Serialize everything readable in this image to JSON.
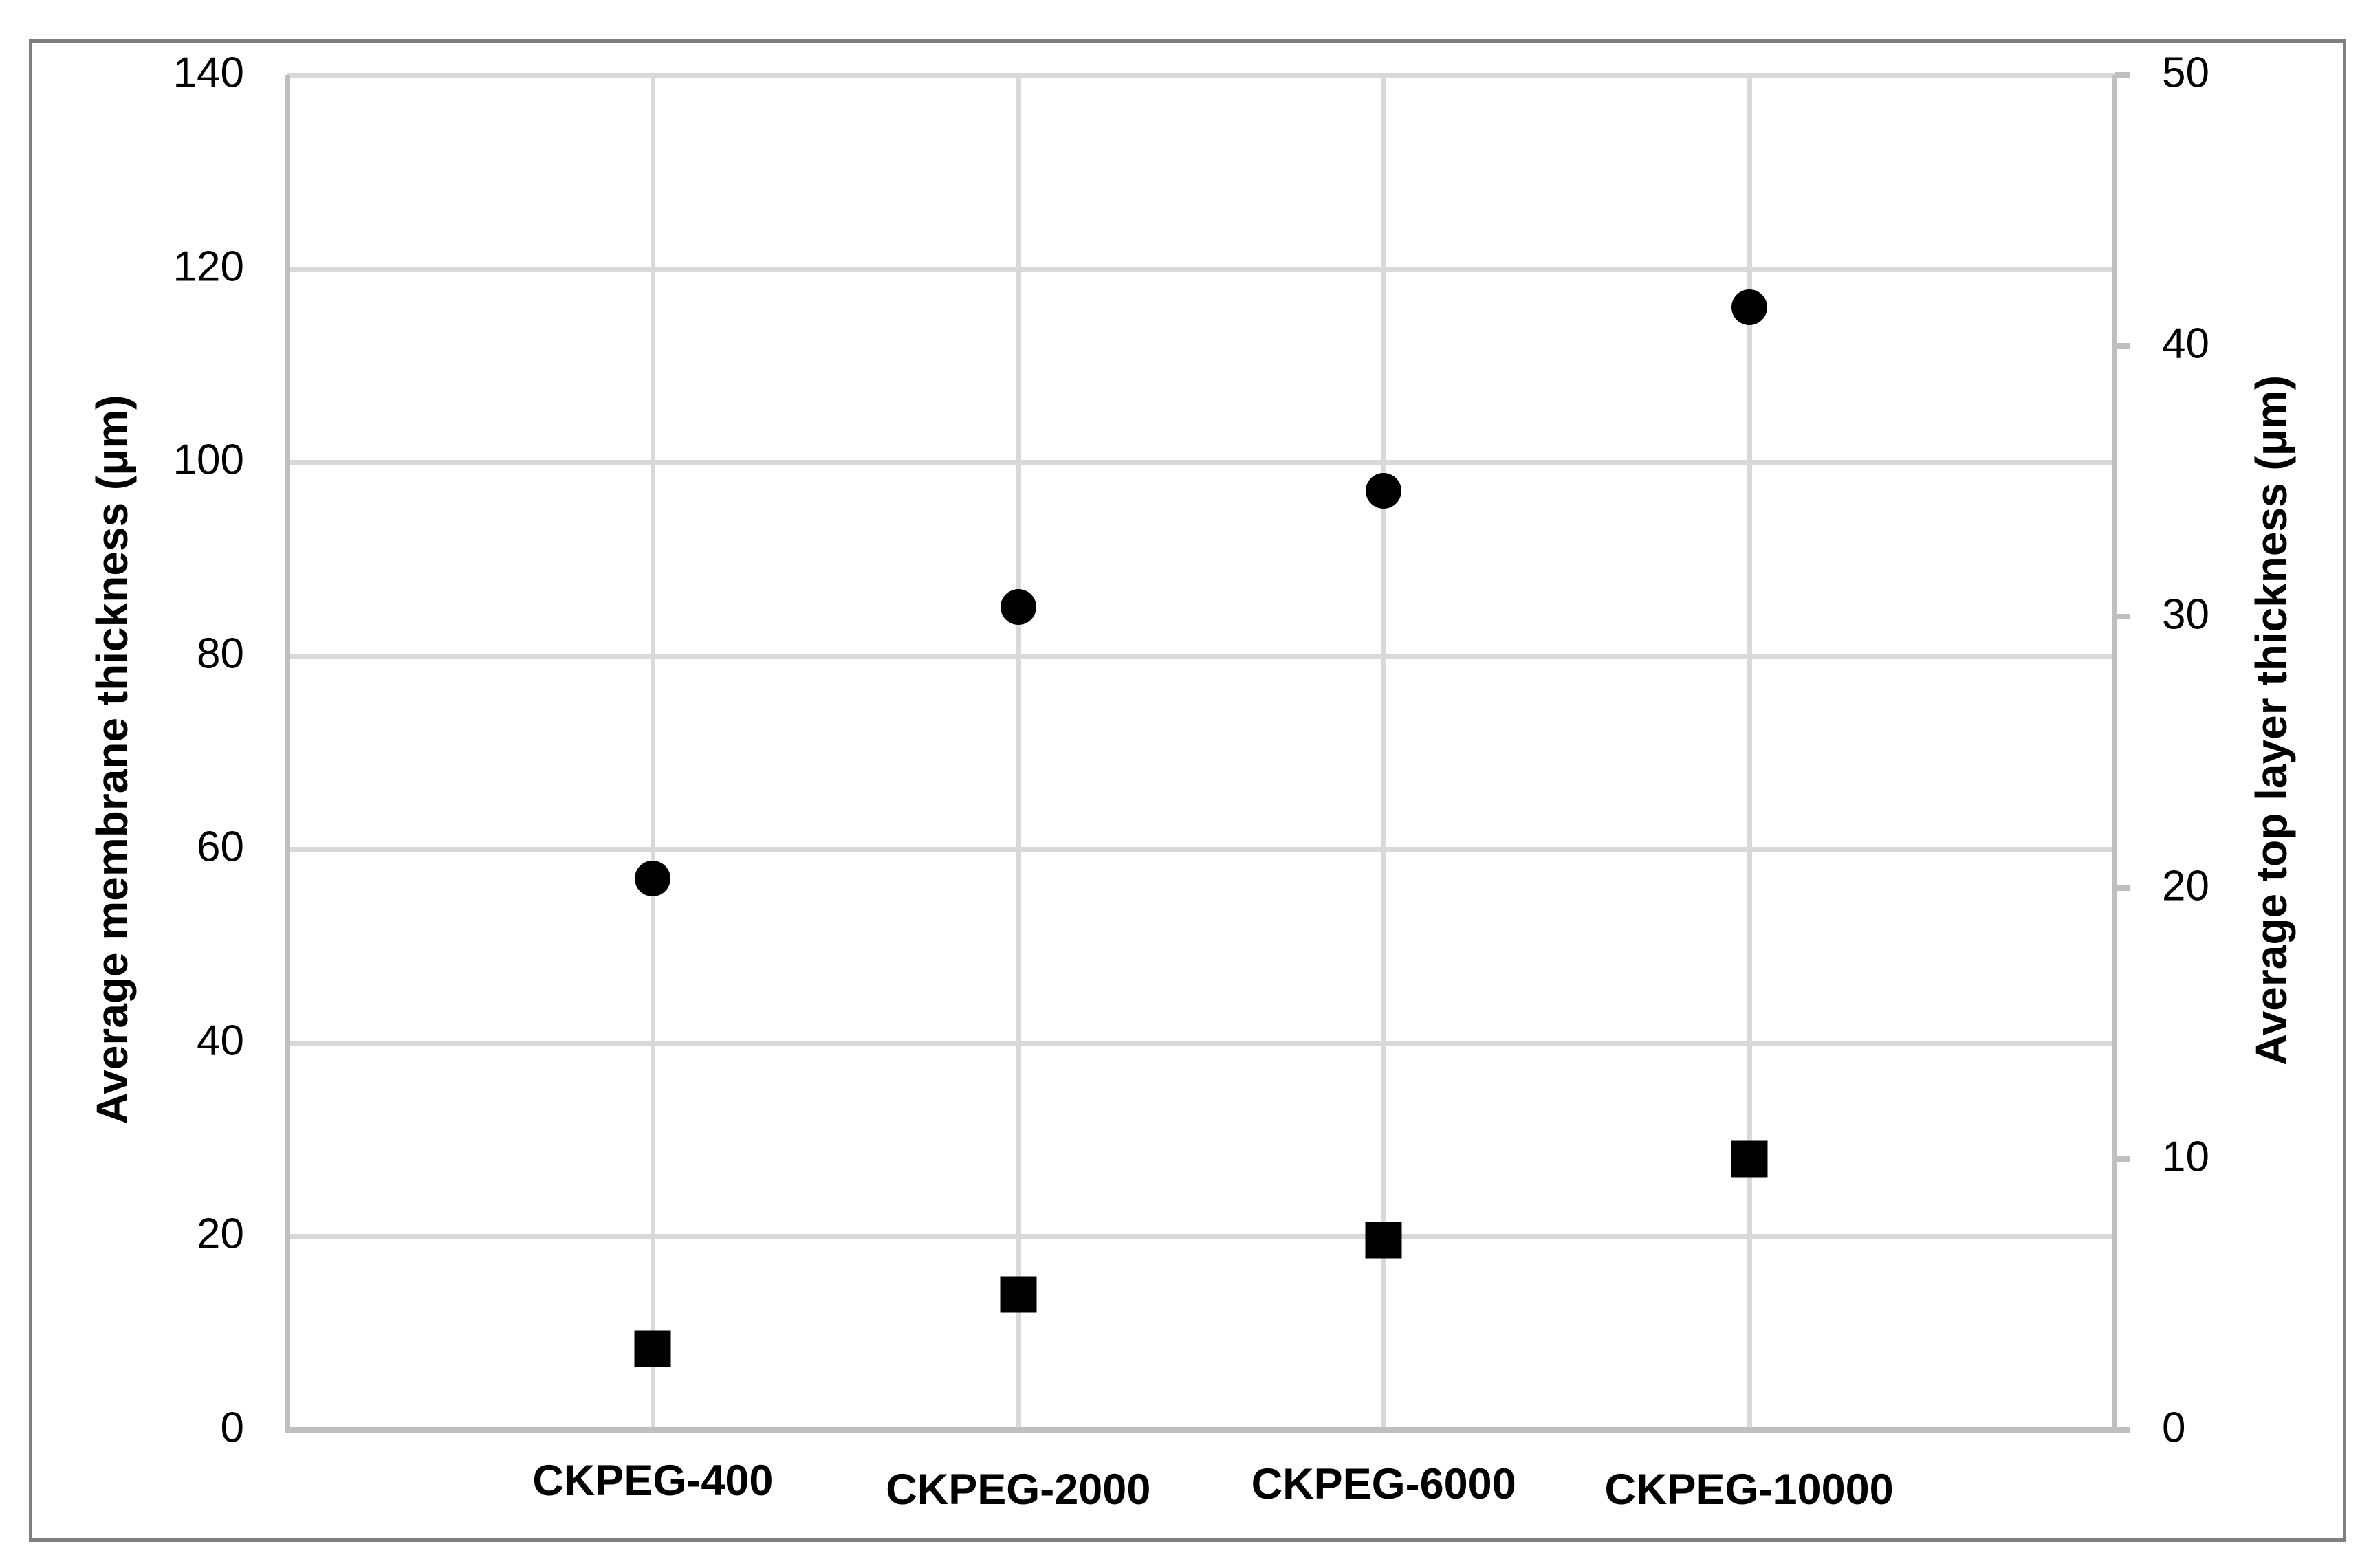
{
  "chart_data": {
    "type": "scatter",
    "categories": [
      "CKPEG-400",
      "CKPEG-2000",
      "CKPEG-6000",
      "CKPEG-10000"
    ],
    "series": [
      {
        "name": "Average membrane thickness",
        "marker": "circle",
        "axis": "left",
        "values": [
          57,
          85,
          97,
          116
        ]
      },
      {
        "name": "Average top layer thickness",
        "marker": "square",
        "axis": "right",
        "values": [
          3,
          5,
          7,
          10
        ]
      }
    ],
    "left_axis": {
      "title": "Average membrane thickness (μm)",
      "min": 0,
      "max": 140,
      "tick_step": 20,
      "ticks": [
        140,
        120,
        100,
        80,
        60,
        40,
        20,
        0
      ]
    },
    "right_axis": {
      "title": "Average top layer thickness (μm)",
      "min": 0,
      "max": 50,
      "tick_step": 10,
      "ticks": [
        50,
        40,
        30,
        20,
        10,
        0
      ]
    },
    "x_axis": {
      "ticks": [
        "CKPEG-400",
        "CKPEG-2000",
        "CKPEG-6000",
        "CKPEG-10000"
      ]
    },
    "gridlines": true,
    "legend": "none",
    "marker_color": "#000000"
  },
  "colors": {
    "background": "#FFFFFF",
    "border": "#7F7F7F",
    "gridline": "#D9D9D9",
    "axis_line": "#BFBFBF",
    "text": "#000000"
  }
}
